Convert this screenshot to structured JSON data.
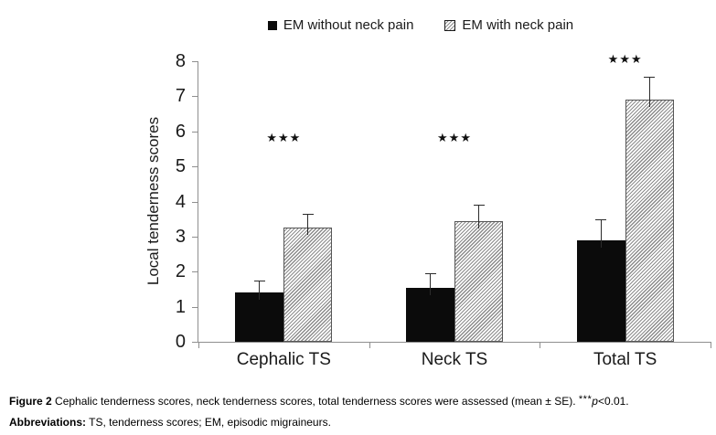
{
  "figure": {
    "caption": {
      "label": "Figure 2",
      "text": "Cephalic tenderness scores, neck tenderness scores, total tenderness scores were assessed (mean ± SE).",
      "sig_marker": "***",
      "sig_p": "p",
      "sig_rest": "<0.01.",
      "abbrev_label": "Abbreviations:",
      "abbrev_text": "TS, tenderness scores; EM, episodic migraineurs."
    },
    "colors": {
      "background": "#ffffff",
      "solid_bar": "#0b0b0b",
      "hatch_gray": "#8c8c8c",
      "axis": "#8f8f8f",
      "text": "#1a1a1a"
    }
  },
  "chart_data": {
    "type": "bar",
    "title": "",
    "categories": [
      "Cephalic TS",
      "Neck TS",
      "Total TS"
    ],
    "series": [
      {
        "name": "EM without neck pain",
        "values": [
          1.4,
          1.55,
          2.9
        ],
        "errors_se": [
          0.35,
          0.4,
          0.6
        ],
        "fill": "solid-black",
        "color": "#0b0b0b"
      },
      {
        "name": "EM with neck pain",
        "values": [
          3.25,
          3.45,
          6.9
        ],
        "errors_se": [
          0.4,
          0.45,
          0.65
        ],
        "fill": "diagonal-hatch",
        "color": "#9b9b9b"
      }
    ],
    "xlabel": "",
    "ylabel": "Local tenderness scores",
    "ylim": [
      0,
      8
    ],
    "ytick_step": 1,
    "grid": false,
    "legend_position": "top-center",
    "error_bars": "upper, mean + SE",
    "annotations": [
      {
        "label": "***",
        "glyph": "★★★",
        "category_index": 0,
        "y": 5.8
      },
      {
        "label": "***",
        "glyph": "★★★",
        "category_index": 1,
        "y": 5.8
      },
      {
        "label": "***",
        "glyph": "★★★",
        "category_index": 2,
        "y": 8.05
      }
    ]
  }
}
